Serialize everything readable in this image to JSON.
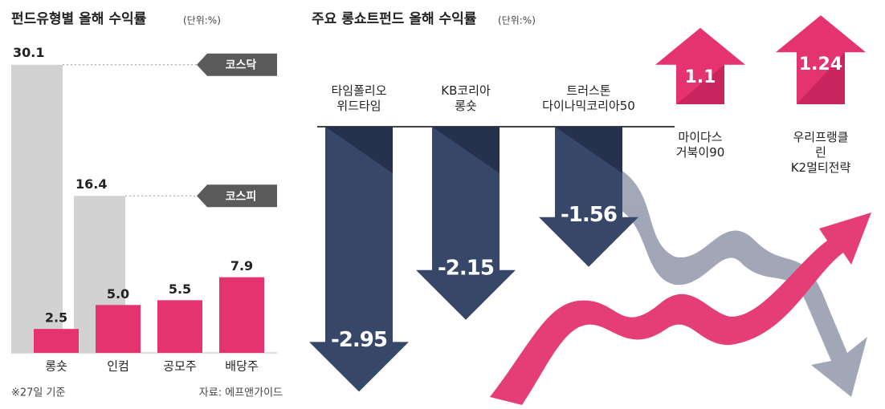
{
  "chart_data": [
    {
      "type": "bar",
      "title": "펀드유형별 올해 수익률",
      "unit": "(단위:%)",
      "categories": [
        "롱숏",
        "인컴",
        "공모주",
        "배당주"
      ],
      "values": [
        2.5,
        5.0,
        5.5,
        7.9
      ],
      "value_labels": [
        "2.5",
        "5.0",
        "5.5",
        "7.9"
      ],
      "color": "#e4336e",
      "reference_bars": [
        {
          "name": "코스닥",
          "value": 30.1,
          "value_label": "30.1",
          "color": "#d2d2d2"
        },
        {
          "name": "코스피",
          "value": 16.4,
          "value_label": "16.4",
          "color": "#d2d2d2"
        }
      ],
      "ylim": [
        0,
        31
      ],
      "notes": [
        "※27일 기준",
        "자료: 에프앤가이드"
      ]
    },
    {
      "type": "arrow",
      "title": "주요 롱쇼트펀드 올해 수익률",
      "unit": "(단위:%)",
      "categories": [
        "타임폴리오\n위드타임",
        "KB코리아\n롱숏",
        "트러스톤\n다이나믹코리아50",
        "마이다스\n거북이90",
        "우리프랭클린\nK2멀티전략"
      ],
      "values": [
        -2.95,
        -2.15,
        -1.56,
        1.1,
        1.24
      ],
      "value_labels": [
        "-2.95",
        "-2.15",
        "-1.56",
        "1.1",
        "1.24"
      ],
      "colors": {
        "negative": "#37476a",
        "positive": "#e4336e"
      },
      "ylim": [
        -3,
        1.3
      ]
    }
  ]
}
